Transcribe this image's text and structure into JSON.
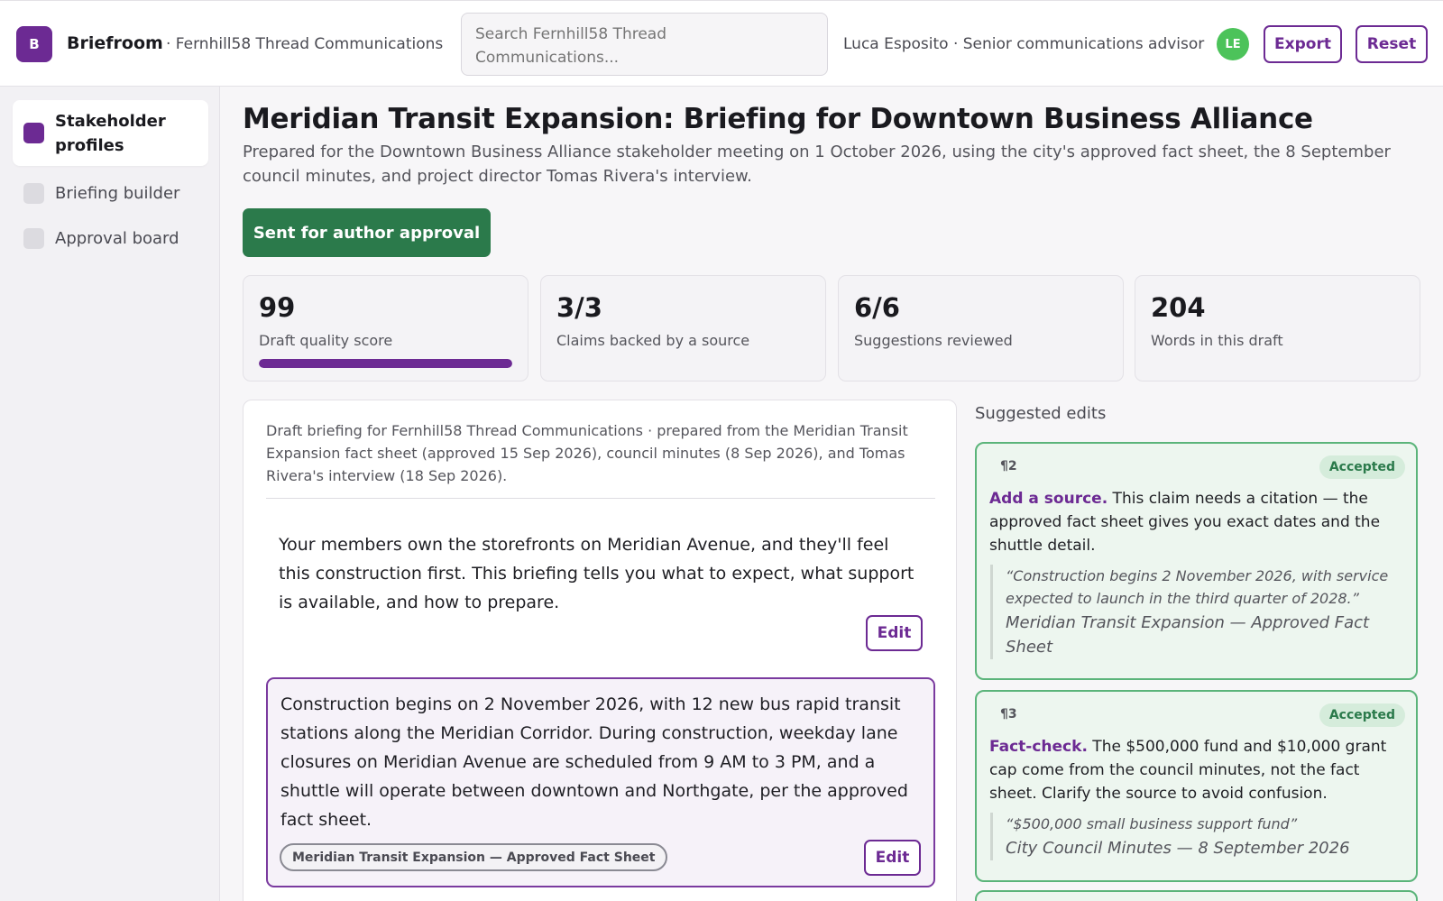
{
  "header": {
    "logo_letter": "B",
    "brand": "Briefroom",
    "workspace": "· Fernhill58 Thread Communications",
    "search_placeholder": "Search Fernhill58 Thread Communications...",
    "user": "Luca Esposito · Senior communications advisor",
    "avatar_initials": "LE",
    "export_label": "Export",
    "reset_label": "Reset"
  },
  "sidebar": {
    "items": [
      {
        "label": "Stakeholder profiles",
        "active": true
      },
      {
        "label": "Briefing builder",
        "active": false
      },
      {
        "label": "Approval board",
        "active": false
      }
    ]
  },
  "main": {
    "title": "Meridian Transit Expansion: Briefing for Downtown Business Alliance",
    "subtitle": "Prepared for the Downtown Business Alliance stakeholder meeting on 1 October 2026, using the city's approved fact sheet, the 8 September council minutes, and project director Tomas Rivera's interview.",
    "status_button": "Sent for author approval",
    "stats": [
      {
        "value": "99",
        "label": "Draft quality score",
        "progress": 1.0
      },
      {
        "value": "3/3",
        "label": "Claims backed by a source"
      },
      {
        "value": "6/6",
        "label": "Suggestions reviewed"
      },
      {
        "value": "204",
        "label": "Words in this draft"
      }
    ]
  },
  "draft": {
    "meta": "Draft briefing for Fernhill58 Thread Communications · prepared from the Meridian Transit Expansion fact sheet (approved 15 Sep 2026), council minutes (8 Sep 2026), and Tomas Rivera's interview (18 Sep 2026).",
    "edit_label": "Edit",
    "paragraphs": [
      {
        "text": "Your members own the storefronts on Meridian Avenue, and they'll feel this construction first. This briefing tells you what to expect, what support is available, and how to prepare."
      },
      {
        "text": "Construction begins on 2 November 2026, with 12 new bus rapid transit stations along the Meridian Corridor. During construction, weekday lane closures on Meridian Avenue are scheduled from 9 AM to 3 PM, and a shuttle will operate between downtown and Northgate, per the approved fact sheet.",
        "source": "Meridian Transit Expansion — Approved Fact Sheet"
      }
    ]
  },
  "suggestions": {
    "heading": "Suggested edits",
    "items": [
      {
        "para": "¶2",
        "status": "Accepted",
        "kind": "Add a source.",
        "body": " This claim needs a citation — the approved fact sheet gives you exact dates and the shuttle detail.",
        "quote": "“Construction begins 2 November 2026, with service expected to launch in the third quarter of 2028.”",
        "quote_source": "Meridian Transit Expansion — Approved Fact Sheet"
      },
      {
        "para": "¶3",
        "status": "Accepted",
        "kind": "Fact-check.",
        "body": " The $500,000 fund and $10,000 grant cap come from the council minutes, not the fact sheet. Clarify the source to avoid confusion.",
        "quote": "“$500,000 small business support fund”",
        "quote_source": "City Council Minutes — 8 September 2026"
      }
    ]
  },
  "colors": {
    "brand": "#6c2a93",
    "success": "#2b7a4b",
    "accepted_bg": "#edf6ef",
    "avatar": "#4cc35a"
  }
}
